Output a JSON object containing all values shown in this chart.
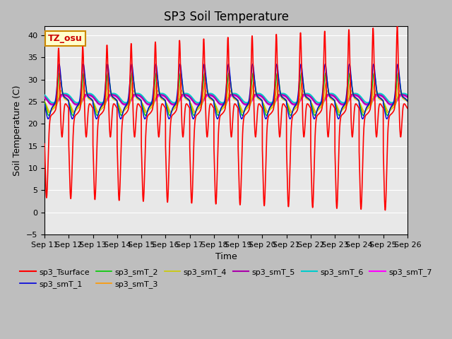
{
  "title": "SP3 Soil Temperature",
  "ylabel": "Soil Temperature (C)",
  "xlabel": "Time",
  "ylim": [
    -5,
    42
  ],
  "xlim": [
    0,
    15
  ],
  "background_color": "#bebebe",
  "plot_bg_color": "#e8e8e8",
  "tz_label": "TZ_osu",
  "x_tick_labels": [
    "Sep 11",
    "Sep 12",
    "Sep 13",
    "Sep 14",
    "Sep 15",
    "Sep 16",
    "Sep 17",
    "Sep 18",
    "Sep 19",
    "Sep 20",
    "Sep 21",
    "Sep 22",
    "Sep 23",
    "Sep 24",
    "Sep 25",
    "Sep 26"
  ],
  "series": {
    "sp3_Tsurface": {
      "color": "#ff0000",
      "lw": 1.2
    },
    "sp3_smT_1": {
      "color": "#0000dd",
      "lw": 1.0
    },
    "sp3_smT_2": {
      "color": "#00cc00",
      "lw": 1.0
    },
    "sp3_smT_3": {
      "color": "#ff9900",
      "lw": 1.0
    },
    "sp3_smT_4": {
      "color": "#cccc00",
      "lw": 1.0
    },
    "sp3_smT_5": {
      "color": "#aa00aa",
      "lw": 1.5
    },
    "sp3_smT_6": {
      "color": "#00cccc",
      "lw": 1.5
    },
    "sp3_smT_7": {
      "color": "#ff00ff",
      "lw": 1.5
    }
  },
  "title_fontsize": 12,
  "label_fontsize": 9,
  "tick_fontsize": 8
}
